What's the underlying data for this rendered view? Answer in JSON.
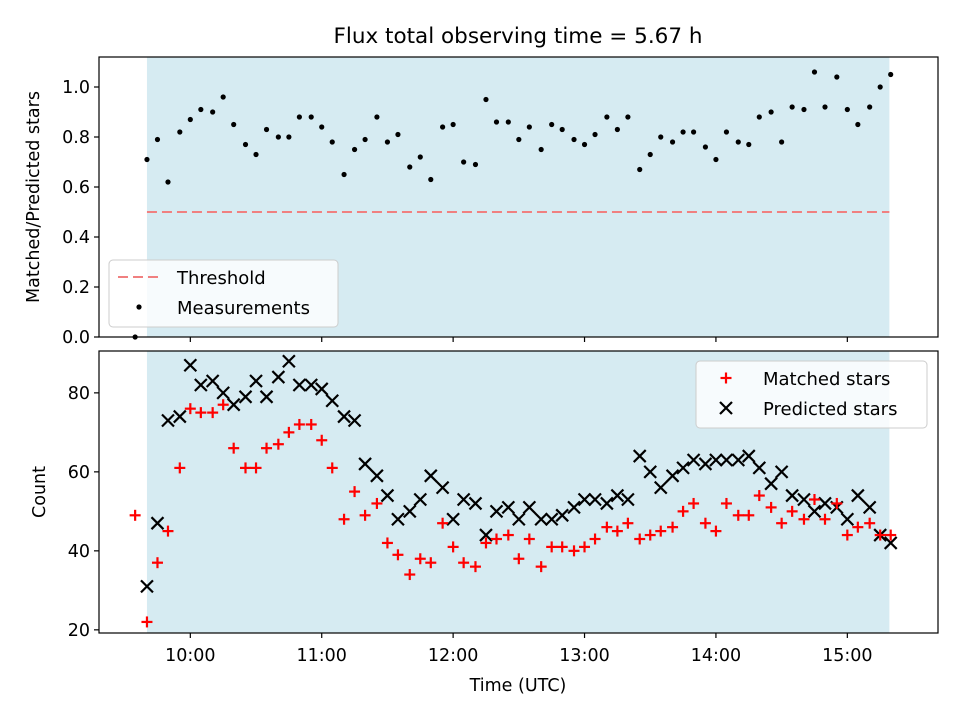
{
  "figure": {
    "title": "Flux total observing time = 5.67 h"
  },
  "colors": {
    "shade": "#add8e6",
    "threshold": "#f08080",
    "measurements": "#000000",
    "matched": "#ff0000",
    "predicted": "#000000"
  },
  "chart_data": [
    {
      "type": "scatter",
      "panel": "top",
      "title": "Flux total observing time = 5.67 h",
      "xlabel": "",
      "ylabel": "Matched/Predicted stars",
      "ylim": [
        0,
        1.12
      ],
      "yticks": [
        0.0,
        0.2,
        0.4,
        0.6,
        0.8,
        1.0
      ],
      "ytick_labels": [
        "0.0",
        "0.2",
        "0.4",
        "0.6",
        "0.8",
        "1.0"
      ],
      "xlim_hours": [
        9.305,
        15.69
      ],
      "shaded_span_hours": [
        9.67,
        15.32
      ],
      "threshold": {
        "value": 0.5,
        "x_range_hours": [
          9.67,
          15.32
        ],
        "style": "dashed"
      },
      "legend": {
        "placement": "lower-left",
        "entries": [
          "Threshold",
          "Measurements"
        ]
      },
      "series": [
        {
          "name": "Measurements",
          "marker": "dot",
          "x_hours": [
            9.58,
            9.67,
            9.75,
            9.83,
            9.92,
            10.0,
            10.08,
            10.17,
            10.25,
            10.33,
            10.42,
            10.5,
            10.58,
            10.67,
            10.75,
            10.83,
            10.92,
            11.0,
            11.08,
            11.17,
            11.25,
            11.33,
            11.42,
            11.5,
            11.58,
            11.67,
            11.75,
            11.83,
            11.92,
            12.0,
            12.08,
            12.17,
            12.25,
            12.33,
            12.42,
            12.5,
            12.58,
            12.67,
            12.75,
            12.83,
            12.92,
            13.0,
            13.08,
            13.17,
            13.25,
            13.33,
            13.42,
            13.5,
            13.58,
            13.67,
            13.75,
            13.83,
            13.92,
            14.0,
            14.08,
            14.17,
            14.25,
            14.33,
            14.42,
            14.5,
            14.58,
            14.67,
            14.75,
            14.83,
            14.92,
            15.0,
            15.08,
            15.17,
            15.25,
            15.33
          ],
          "values": [
            0.0,
            0.71,
            0.79,
            0.62,
            0.82,
            0.87,
            0.91,
            0.9,
            0.96,
            0.85,
            0.77,
            0.73,
            0.83,
            0.8,
            0.8,
            0.88,
            0.88,
            0.84,
            0.78,
            0.65,
            0.75,
            0.79,
            0.88,
            0.78,
            0.81,
            0.68,
            0.72,
            0.63,
            0.84,
            0.85,
            0.7,
            0.69,
            0.95,
            0.86,
            0.86,
            0.79,
            0.84,
            0.75,
            0.85,
            0.83,
            0.79,
            0.77,
            0.81,
            0.88,
            0.83,
            0.88,
            0.67,
            0.73,
            0.8,
            0.78,
            0.82,
            0.82,
            0.76,
            0.71,
            0.82,
            0.78,
            0.77,
            0.88,
            0.9,
            0.78,
            0.92,
            0.91,
            1.06,
            0.92,
            1.04,
            0.91,
            0.85,
            0.92,
            1.0,
            1.05
          ]
        }
      ]
    },
    {
      "type": "scatter",
      "panel": "bottom",
      "xlabel": "Time (UTC)",
      "ylabel": "Count",
      "ylim": [
        19.2,
        90.6
      ],
      "yticks": [
        20,
        40,
        60,
        80
      ],
      "ytick_labels": [
        "20",
        "40",
        "60",
        "80"
      ],
      "xlim_hours": [
        9.305,
        15.69
      ],
      "xticks_hours": [
        10,
        11,
        12,
        13,
        14,
        15
      ],
      "xtick_labels": [
        "10:00",
        "11:00",
        "12:00",
        "13:00",
        "14:00",
        "15:00"
      ],
      "shaded_span_hours": [
        9.67,
        15.32
      ],
      "legend": {
        "placement": "upper-right",
        "entries": [
          "Matched stars",
          "Predicted stars"
        ]
      },
      "series": [
        {
          "name": "Matched stars",
          "marker": "plus",
          "x_hours": [
            9.58,
            9.67,
            9.75,
            9.83,
            9.92,
            10.0,
            10.08,
            10.17,
            10.25,
            10.33,
            10.42,
            10.5,
            10.58,
            10.67,
            10.75,
            10.83,
            10.92,
            11.0,
            11.08,
            11.17,
            11.25,
            11.33,
            11.42,
            11.5,
            11.58,
            11.67,
            11.75,
            11.83,
            11.92,
            12.0,
            12.08,
            12.17,
            12.25,
            12.33,
            12.42,
            12.5,
            12.58,
            12.67,
            12.75,
            12.83,
            12.92,
            13.0,
            13.08,
            13.17,
            13.25,
            13.33,
            13.42,
            13.5,
            13.58,
            13.67,
            13.75,
            13.83,
            13.92,
            14.0,
            14.08,
            14.17,
            14.25,
            14.33,
            14.42,
            14.5,
            14.58,
            14.67,
            14.75,
            14.83,
            14.92,
            15.0,
            15.08,
            15.17,
            15.25,
            15.33
          ],
          "values": [
            49,
            22,
            37,
            45,
            61,
            76,
            75,
            75,
            77,
            66,
            61,
            61,
            66,
            67,
            70,
            72,
            72,
            68,
            61,
            48,
            55,
            49,
            52,
            42,
            39,
            34,
            38,
            37,
            47,
            41,
            37,
            36,
            42,
            43,
            44,
            38,
            43,
            36,
            41,
            41,
            40,
            41,
            43,
            46,
            45,
            47,
            43,
            44,
            45,
            46,
            50,
            52,
            47,
            45,
            52,
            49,
            49,
            54,
            51,
            47,
            50,
            48,
            53,
            48,
            52,
            44,
            46,
            47,
            44,
            44
          ]
        },
        {
          "name": "Predicted stars",
          "marker": "x",
          "x_hours": [
            9.67,
            9.75,
            9.83,
            9.92,
            10.0,
            10.08,
            10.17,
            10.25,
            10.33,
            10.42,
            10.5,
            10.58,
            10.67,
            10.75,
            10.83,
            10.92,
            11.0,
            11.08,
            11.17,
            11.25,
            11.33,
            11.42,
            11.5,
            11.58,
            11.67,
            11.75,
            11.83,
            11.92,
            12.0,
            12.08,
            12.17,
            12.25,
            12.33,
            12.42,
            12.5,
            12.58,
            12.67,
            12.75,
            12.83,
            12.92,
            13.0,
            13.08,
            13.17,
            13.25,
            13.33,
            13.42,
            13.5,
            13.58,
            13.67,
            13.75,
            13.83,
            13.92,
            14.0,
            14.08,
            14.17,
            14.25,
            14.33,
            14.42,
            14.5,
            14.58,
            14.67,
            14.75,
            14.83,
            14.92,
            15.0,
            15.08,
            15.17,
            15.25,
            15.33
          ],
          "values": [
            31,
            47,
            73,
            74,
            87,
            82,
            83,
            80,
            77,
            79,
            83,
            79,
            84,
            88,
            82,
            82,
            81,
            78,
            74,
            73,
            62,
            59,
            54,
            48,
            50,
            53,
            59,
            56,
            48,
            53,
            52,
            44,
            50,
            51,
            48,
            51,
            48,
            48,
            49,
            51,
            53,
            53,
            52,
            54,
            53,
            64,
            60,
            56,
            59,
            61,
            63,
            62,
            63,
            63,
            63,
            64,
            61,
            57,
            60,
            54,
            53,
            50,
            52,
            51,
            48,
            54,
            51,
            44,
            42
          ]
        }
      ]
    }
  ]
}
